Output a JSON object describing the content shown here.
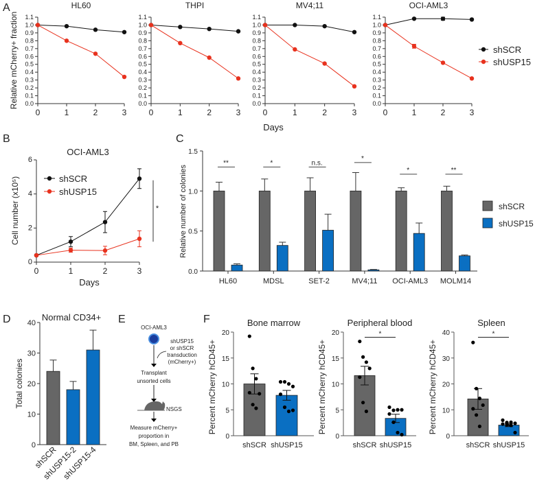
{
  "panel_labels": [
    "A",
    "B",
    "C",
    "D",
    "E",
    "F"
  ],
  "colors": {
    "shSCR_line": "#111111",
    "shUSP15_line": "#e8321e",
    "shSCR_bar": "#666666",
    "shUSP15_bar": "#0a6fc2",
    "cell": "#1a3d9e"
  },
  "chart_data": [
    {
      "id": "A-HL60",
      "type": "line",
      "title": "HL60",
      "ylabel": "Relative mCherry+ fraction",
      "xlabel": "Days",
      "x": [
        0,
        1,
        2,
        3
      ],
      "ylim": [
        0,
        1.1
      ],
      "yticks": [
        "0.0",
        "0.1",
        "0.2",
        "0.3",
        "0.4",
        "0.5",
        "0.6",
        "0.7",
        "0.8",
        "0.9",
        "1.0",
        "1.1"
      ],
      "xticks": [
        "0",
        "1",
        "2",
        "3"
      ],
      "series": [
        {
          "name": "shSCR",
          "values": [
            1.0,
            0.985,
            0.94,
            0.91
          ],
          "errors": [
            0,
            0,
            0,
            0
          ]
        },
        {
          "name": "shUSP15",
          "values": [
            1.0,
            0.8,
            0.635,
            0.34
          ],
          "errors": [
            0,
            0,
            0,
            0
          ]
        }
      ]
    },
    {
      "id": "A-THPI",
      "type": "line",
      "title": "THPI",
      "x": [
        0,
        1,
        2,
        3
      ],
      "ylim": [
        0,
        1.1
      ],
      "yticks": [
        "0.0",
        "0.1",
        "0.2",
        "0.3",
        "0.4",
        "0.5",
        "0.6",
        "0.7",
        "0.8",
        "0.9",
        "1.0",
        "1.1"
      ],
      "xticks": [
        "0",
        "1",
        "2",
        "3"
      ],
      "series": [
        {
          "name": "shSCR",
          "values": [
            1.0,
            0.975,
            0.95,
            0.92
          ],
          "errors": [
            0,
            0,
            0,
            0
          ]
        },
        {
          "name": "shUSP15",
          "values": [
            1.0,
            0.77,
            0.585,
            0.32
          ],
          "errors": [
            0,
            0,
            0,
            0
          ]
        }
      ]
    },
    {
      "id": "A-MV411",
      "type": "line",
      "title": "MV4;11",
      "x": [
        0,
        1,
        2,
        3
      ],
      "ylim": [
        0,
        1.1
      ],
      "yticks": [
        "0.0",
        "0.1",
        "0.2",
        "0.3",
        "0.4",
        "0.5",
        "0.6",
        "0.7",
        "0.8",
        "0.9",
        "1.0",
        "1.1"
      ],
      "xticks": [
        "0",
        "1",
        "2",
        "3"
      ],
      "series": [
        {
          "name": "shSCR",
          "values": [
            1.0,
            1.0,
            0.985,
            0.91
          ],
          "errors": [
            0,
            0,
            0,
            0
          ]
        },
        {
          "name": "shUSP15",
          "values": [
            1.0,
            0.69,
            0.51,
            0.22
          ],
          "errors": [
            0,
            0,
            0,
            0
          ]
        }
      ]
    },
    {
      "id": "A-OCIAML3",
      "type": "line",
      "title": "OCI-AML3",
      "x": [
        0,
        1,
        2,
        3
      ],
      "ylim": [
        0,
        1.1
      ],
      "yticks": [
        "0.0",
        "0.1",
        "0.2",
        "0.3",
        "0.4",
        "0.5",
        "0.6",
        "0.7",
        "0.8",
        "0.9",
        "1.0",
        "1.1"
      ],
      "xticks": [
        "0",
        "1",
        "2",
        "3"
      ],
      "series": [
        {
          "name": "shSCR",
          "values": [
            1.0,
            1.08,
            1.08,
            1.07
          ],
          "errors": [
            0,
            0,
            0.02,
            0
          ]
        },
        {
          "name": "shUSP15",
          "values": [
            1.0,
            0.73,
            0.52,
            0.32
          ],
          "errors": [
            0,
            0.025,
            0,
            0
          ]
        }
      ],
      "legend": {
        "placement": "right",
        "entries": [
          "shSCR",
          "shUSP15"
        ]
      }
    },
    {
      "id": "B",
      "type": "line",
      "title": "OCI-AML3",
      "ylabel": "Cell number (x10⁵)",
      "xlabel": "Days",
      "x": [
        0,
        1,
        2,
        3
      ],
      "ylim": [
        0,
        6
      ],
      "yticks": [
        "0",
        "2",
        "4",
        "6"
      ],
      "xticks": [
        "0",
        "1",
        "2",
        "3"
      ],
      "series": [
        {
          "name": "shSCR",
          "values": [
            0.4,
            1.2,
            2.35,
            4.9
          ],
          "errors": [
            0.05,
            0.3,
            0.62,
            0.58
          ]
        },
        {
          "name": "shUSP15",
          "values": [
            0.4,
            0.7,
            0.68,
            1.37
          ],
          "errors": [
            0,
            0.12,
            0.25,
            0.47
          ]
        }
      ],
      "legend": {
        "placement": "top-left",
        "entries": [
          "shSCR",
          "shUSP15"
        ]
      },
      "significance": {
        "label": "*",
        "range": [
          1.37,
          4.9
        ]
      }
    },
    {
      "id": "C",
      "type": "bar",
      "ylabel": "Relative number of colonies",
      "ylim": [
        0,
        1.5
      ],
      "yticks": [
        "0.0",
        "0.5",
        "1.0",
        "1.5"
      ],
      "categories": [
        "HL60",
        "MDSL",
        "SET-2",
        "MV4;11",
        "OCI-AML3",
        "MOLM14"
      ],
      "series": [
        {
          "name": "shSCR",
          "values": [
            1,
            1,
            1,
            1,
            1,
            1
          ],
          "errors": [
            0.11,
            0.15,
            0.165,
            0.23,
            0.04,
            0.06
          ]
        },
        {
          "name": "shUSP15",
          "values": [
            0.075,
            0.32,
            0.51,
            0.015,
            0.47,
            0.19
          ],
          "errors": [
            0.015,
            0.04,
            0.2,
            0.005,
            0.13,
            0.01
          ]
        }
      ],
      "significance": [
        {
          "label": "**",
          "y": 1.3
        },
        {
          "label": "*",
          "y": 1.3
        },
        {
          "label": "n.s.",
          "y": 1.3
        },
        {
          "label": "*",
          "y": 1.355
        },
        {
          "label": "*",
          "y": 1.21
        },
        {
          "label": "**",
          "y": 1.21
        }
      ],
      "legend": {
        "placement": "right",
        "entries": [
          "shSCR",
          "shUSP15"
        ]
      }
    },
    {
      "id": "D",
      "type": "bar",
      "title": "Normal CD34+",
      "ylabel": "Total colonies",
      "ylim": [
        0,
        40
      ],
      "yticks": [
        "0",
        "10",
        "20",
        "30",
        "40"
      ],
      "categories": [
        "shSCR",
        "shUSP15-2",
        "shUSP15-4"
      ],
      "values": [
        24,
        18,
        31
      ],
      "errors": [
        3.7,
        2.7,
        6.5
      ]
    },
    {
      "id": "F-BM",
      "type": "bar",
      "title": "Bone marrow",
      "ylabel": "Percent mCherry hCD45+",
      "ylim": [
        0,
        20
      ],
      "yticks": [
        "0",
        "5",
        "10",
        "15",
        "20"
      ],
      "categories": [
        "shSCR",
        "shUSP15"
      ],
      "values": [
        10.0,
        7.8
      ],
      "errors": [
        1.95,
        0.95
      ],
      "points": [
        [
          19.2,
          13.0,
          11.0,
          8.1,
          8.3,
          6.0,
          5.3
        ],
        [
          10.4,
          10.4,
          10.0,
          9.5,
          8.0,
          5.5,
          4.7,
          4.9
        ]
      ]
    },
    {
      "id": "F-PB",
      "type": "bar",
      "title": "Peripheral blood",
      "ylabel": "Percent mCherry hCD45+",
      "ylim": [
        0,
        20
      ],
      "yticks": [
        "0",
        "5",
        "10",
        "15",
        "20"
      ],
      "categories": [
        "shSCR",
        "shUSP15"
      ],
      "values": [
        11.6,
        3.35
      ],
      "errors": [
        1.8,
        0.8
      ],
      "points": [
        [
          18.2,
          15.2,
          14.2,
          13.0,
          11.3,
          6.4,
          4.7
        ],
        [
          5.5,
          4.9,
          5.0,
          5.0,
          4.2,
          2.6,
          0.6,
          0.2
        ]
      ],
      "significance": {
        "label": "*",
        "y": 19.0
      }
    },
    {
      "id": "F-SP",
      "type": "bar",
      "title": "Spleen",
      "ylabel": "Percent mCherry hCD45+",
      "ylim": [
        0,
        40
      ],
      "yticks": [
        "0",
        "10",
        "20",
        "30",
        "40"
      ],
      "categories": [
        "shSCR",
        "shUSP15"
      ],
      "values": [
        14.2,
        4.1
      ],
      "errors": [
        4.0,
        0.6
      ],
      "points": [
        [
          36.0,
          18.2,
          14.4,
          11.8,
          10.4,
          8.0,
          3.6
        ],
        [
          6.0,
          5.1,
          5.2,
          4.8,
          4.5,
          4.2,
          4.0,
          1.2
        ]
      ],
      "significance": {
        "label": "*",
        "y": 38.0
      }
    }
  ],
  "diagram": {
    "cell_line": "OCI-AML3",
    "transduction": [
      "shUSP15",
      "or shSCR",
      "transduction",
      "(mCherry+)"
    ],
    "transplant": [
      "Transplant",
      "unsorted cells"
    ],
    "mouse": "NSGS",
    "measure": [
      "Measure mCherry+",
      "proportion in",
      "BM, Spleen, and PB"
    ],
    "icons": [
      "cell-icon",
      "arrow-down-icon",
      "mouse-icon"
    ]
  }
}
